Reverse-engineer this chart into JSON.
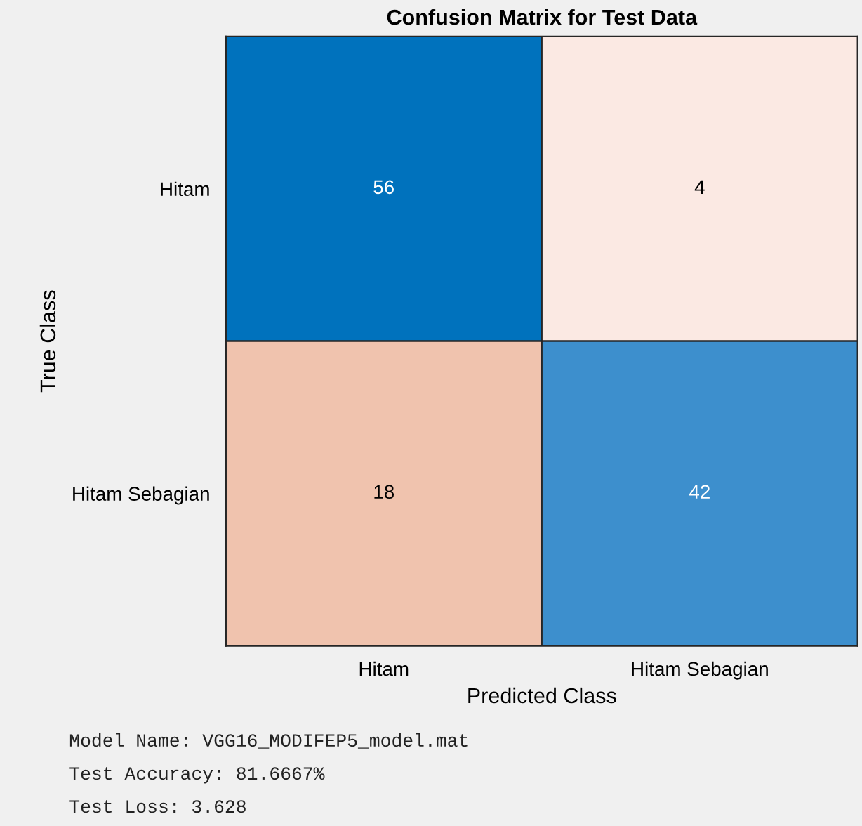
{
  "chart_data": {
    "type": "heatmap",
    "title": "Confusion Matrix for Test Data",
    "xlabel": "Predicted Class",
    "ylabel": "True Class",
    "categories": [
      "Hitam",
      "Hitam Sebagian"
    ],
    "y_categories": [
      "Hitam",
      "Hitam Sebagian"
    ],
    "cells": [
      [
        56,
        4
      ],
      [
        18,
        42
      ]
    ],
    "colors": [
      "#0072bd",
      "#fbe9e3",
      "#f0c3ae",
      "#3d8fcd"
    ],
    "data_labels": true,
    "annotations": [
      "Model Name: VGG16_MODIFEP5_model.mat",
      "Test Accuracy: 81.6667%",
      "Test Loss: 3.628"
    ]
  }
}
